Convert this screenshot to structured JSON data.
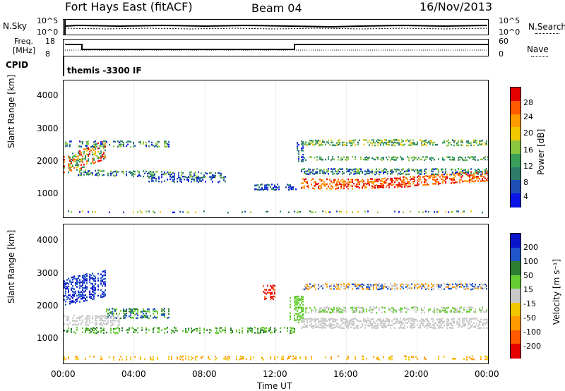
{
  "header": {
    "station": "Fort Hays East (fitACF)",
    "beam": "Beam 04",
    "date": "16/Nov/2013"
  },
  "top_panels": {
    "nsky_label": "N.Sky",
    "nsky_ticks": [
      "10^5",
      "10^0"
    ],
    "nsearch_label": "N.Search",
    "nsearch_ticks": [
      "10^5",
      "10^0"
    ],
    "freq_label_1": "Freq.",
    "freq_label_2": "[MHz]",
    "freq_ticks": [
      "18",
      "8"
    ],
    "nave_label": "Nave",
    "nave_ticks": [
      "60",
      "0"
    ],
    "cpid_label": "CPID",
    "cpid_value": "themis -3300 IF"
  },
  "chart_data": [
    {
      "type": "heatmap",
      "panel": "power",
      "ylabel": "Slant Range [km]",
      "yticks": [
        "4000",
        "3000",
        "2000",
        "1000"
      ],
      "ylim": [
        180,
        4500
      ],
      "colorbar_label": "Power [dB]",
      "colorbar_ticks": [
        "28",
        "24",
        "20",
        "16",
        "12",
        "8",
        "4"
      ],
      "colorbar_colors": [
        "#e60000",
        "#ff5a00",
        "#ff9a00",
        "#f2c600",
        "#8cc63f",
        "#3aa05a",
        "#2e7d6b",
        "#1f4fb4",
        "#0a14e6"
      ]
    },
    {
      "type": "heatmap",
      "panel": "velocity",
      "ylabel": "Slant Range [km]",
      "yticks": [
        "4000",
        "3000",
        "2000",
        "1000"
      ],
      "ylim": [
        180,
        4500
      ],
      "xlabel": "Time UT",
      "xticks": [
        "00:00",
        "04:00",
        "08:00",
        "12:00",
        "16:00",
        "20:00",
        "00:00"
      ],
      "colorbar_label": "Velocity [m s⁻¹]",
      "colorbar_ticks": [
        "200",
        "100",
        "50",
        "15",
        "-15",
        "-50",
        "-100",
        "-200"
      ],
      "colorbar_colors": [
        "#0a14c8",
        "#1f55c8",
        "#2e7d32",
        "#66cc33",
        "#c8c8c8",
        "#f2c600",
        "#ff9a00",
        "#ff5a00",
        "#e60000"
      ]
    }
  ]
}
